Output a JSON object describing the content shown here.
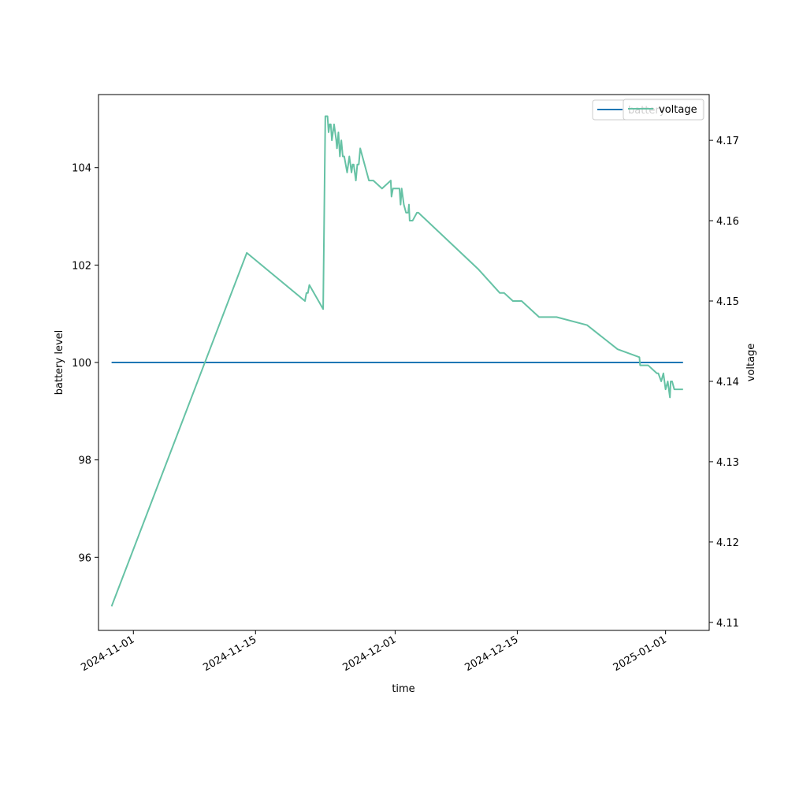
{
  "chart_data": {
    "type": "line",
    "xlabel": "time",
    "ylabel": "battery level",
    "y2label": "voltage",
    "x_tick_labels": [
      "2024-11-01",
      "2024-11-15",
      "2024-12-01",
      "2024-12-15",
      "2025-01-01"
    ],
    "x_tick_values": [
      "2024-11-01",
      "2024-11-15",
      "2024-12-01",
      "2024-12-15",
      "2025-01-01"
    ],
    "y_tick_labels": [
      "96",
      "98",
      "100",
      "102",
      "104"
    ],
    "y2_tick_labels": [
      "4.11",
      "4.12",
      "4.13",
      "4.14",
      "4.15",
      "4.16",
      "4.17"
    ],
    "xlim": [
      "2024-10-28T00:00",
      "2025-01-06T00:00"
    ],
    "ylim": [
      94.5,
      105.5
    ],
    "y2lim": [
      4.109,
      4.1757
    ],
    "grid": false,
    "legend_position": "top-right",
    "series": [
      {
        "name": "battery",
        "axis": "left",
        "color": "#1f77b4",
        "x": [
          "2024-10-29T12:00",
          "2025-01-03T00:00"
        ],
        "y": [
          100,
          100
        ]
      },
      {
        "name": "voltage",
        "axis": "right",
        "color": "#66c2a5",
        "x": [
          "2024-10-29T12:00",
          "2024-11-14T00:00",
          "2024-11-20T16:00",
          "2024-11-20T20:00",
          "2024-11-21T00:00",
          "2024-11-21T04:00",
          "2024-11-22T18:00",
          "2024-11-23T00:00",
          "2024-11-23T03:00",
          "2024-11-23T06:00",
          "2024-11-23T09:00",
          "2024-11-23T12:00",
          "2024-11-23T15:00",
          "2024-11-23T18:00",
          "2024-11-24T00:00",
          "2024-11-24T06:00",
          "2024-11-24T08:00",
          "2024-11-24T12:00",
          "2024-11-24T16:00",
          "2024-11-24T20:00",
          "2024-11-25T00:00",
          "2024-11-25T04:00",
          "2024-11-25T08:00",
          "2024-11-25T12:00",
          "2024-11-25T18:00",
          "2024-11-26T00:00",
          "2024-11-26T03:00",
          "2024-11-26T06:00",
          "2024-11-26T09:00",
          "2024-11-26T12:00",
          "2024-11-26T16:00",
          "2024-11-26T20:00",
          "2024-11-27T00:00",
          "2024-11-28T00:00",
          "2024-11-28T12:00",
          "2024-11-29T12:00",
          "2024-11-30T12:00",
          "2024-11-30T14:00",
          "2024-11-30T18:00",
          "2024-12-01T12:00",
          "2024-12-01T15:00",
          "2024-12-01T18:00",
          "2024-12-02T00:00",
          "2024-12-02T06:00",
          "2024-12-02T12:00",
          "2024-12-02T14:00",
          "2024-12-02T16:00",
          "2024-12-03T00:00",
          "2024-12-03T12:00",
          "2024-12-03T16:00",
          "2024-12-10T12:00",
          "2024-12-13T00:00",
          "2024-12-13T12:00",
          "2024-12-14T12:00",
          "2024-12-15T12:00",
          "2024-12-17T12:00",
          "2024-12-19T12:00",
          "2024-12-23T00:00",
          "2024-12-26T12:00",
          "2024-12-29T00:00",
          "2024-12-29T02:00",
          "2024-12-30T00:00",
          "2024-12-31T00:00",
          "2024-12-31T04:00",
          "2024-12-31T12:00",
          "2024-12-31T18:00",
          "2025-01-01T00:00",
          "2025-01-01T06:00",
          "2025-01-01T12:00",
          "2025-01-01T14:00",
          "2025-01-01T18:00",
          "2025-01-02T00:00",
          "2025-01-03T00:00"
        ],
        "y": [
          4.112,
          4.156,
          4.15,
          4.151,
          4.151,
          4.152,
          4.149,
          4.173,
          4.173,
          4.173,
          4.171,
          4.172,
          4.172,
          4.17,
          4.172,
          4.17,
          4.169,
          4.171,
          4.168,
          4.17,
          4.168,
          4.168,
          4.167,
          4.166,
          4.168,
          4.166,
          4.167,
          4.167,
          4.166,
          4.165,
          4.167,
          4.167,
          4.169,
          4.165,
          4.165,
          4.164,
          4.165,
          4.163,
          4.164,
          4.164,
          4.162,
          4.164,
          4.162,
          4.161,
          4.161,
          4.162,
          4.16,
          4.16,
          4.161,
          4.161,
          4.154,
          4.151,
          4.151,
          4.15,
          4.15,
          4.148,
          4.148,
          4.147,
          4.144,
          4.143,
          4.142,
          4.142,
          4.141,
          4.141,
          4.14,
          4.141,
          4.139,
          4.14,
          4.138,
          4.14,
          4.14,
          4.139,
          4.139
        ]
      }
    ]
  }
}
